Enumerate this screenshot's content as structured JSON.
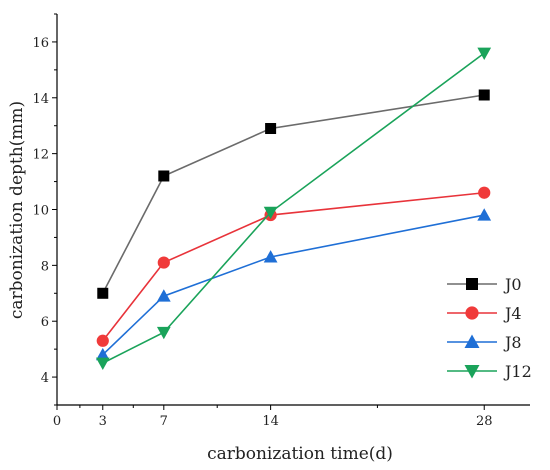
{
  "chart_data": {
    "type": "line",
    "xlabel": "carbonization time(d)",
    "ylabel": "carbonization depth(mm)",
    "xlim": [
      0,
      31
    ],
    "ylim": [
      3,
      17
    ],
    "x_ticks": [
      0,
      3,
      7,
      14,
      28
    ],
    "y_ticks": [
      4,
      6,
      8,
      10,
      12,
      14,
      16
    ],
    "x_tick_labels": [
      "0",
      "3",
      "7",
      "14",
      "28"
    ],
    "y_tick_labels": [
      "4",
      "6",
      "8",
      "10",
      "12",
      "14",
      "16"
    ],
    "x": [
      3,
      7,
      14,
      28
    ],
    "grid": false,
    "legend_position": "bottom-right",
    "series": [
      {
        "name": "J0",
        "marker": "square",
        "color": "#6b6b6b",
        "marker_color": "#000000",
        "values": [
          7.0,
          11.2,
          12.9,
          14.1
        ]
      },
      {
        "name": "J4",
        "marker": "circle",
        "color": "#e8333a",
        "marker_color": "#f03a3a",
        "values": [
          5.3,
          8.1,
          9.8,
          10.6
        ]
      },
      {
        "name": "J8",
        "marker": "triangle-up",
        "color": "#1f6fd6",
        "marker_color": "#1f6fd6",
        "values": [
          4.8,
          6.9,
          8.3,
          9.8
        ]
      },
      {
        "name": "J12",
        "marker": "triangle-down",
        "color": "#1aa35a",
        "marker_color": "#1aa35a",
        "values": [
          4.5,
          5.6,
          9.9,
          15.6
        ]
      }
    ]
  }
}
